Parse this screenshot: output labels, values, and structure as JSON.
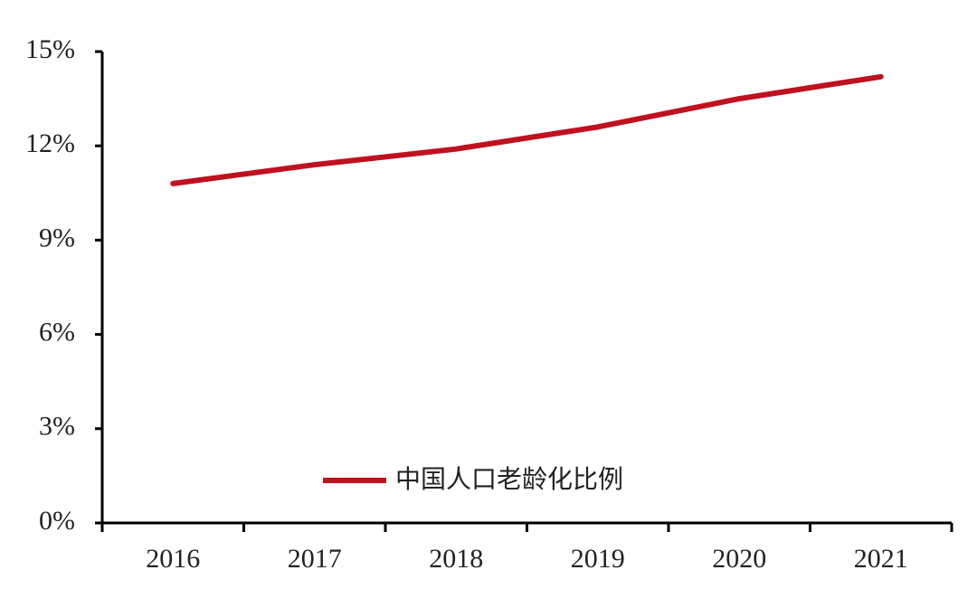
{
  "chart_data": {
    "type": "line",
    "categories": [
      "2016",
      "2017",
      "2018",
      "2019",
      "2020",
      "2021"
    ],
    "series": [
      {
        "name": "中国人口老龄化比例",
        "color": "#c0111f",
        "values": [
          10.8,
          11.4,
          11.9,
          12.6,
          13.5,
          14.2
        ]
      }
    ],
    "ylim": [
      0,
      15
    ],
    "yticks": [
      {
        "value": 0,
        "label": "0%"
      },
      {
        "value": 3,
        "label": "3%"
      },
      {
        "value": 6,
        "label": "6%"
      },
      {
        "value": 9,
        "label": "9%"
      },
      {
        "value": 12,
        "label": "12%"
      },
      {
        "value": 15,
        "label": "15%"
      }
    ],
    "grid": false,
    "legend": "bottom"
  }
}
